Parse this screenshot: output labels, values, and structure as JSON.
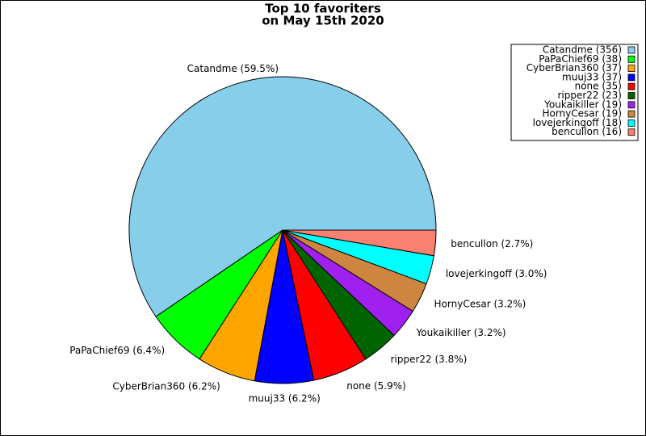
{
  "chart_data": {
    "type": "pie",
    "title_lines": [
      "Top 10 favoriters",
      "on May 15th 2020"
    ],
    "categories": [
      "Catandme",
      "PaPaChief69",
      "CyberBrian360",
      "muuj33",
      "none",
      "ripper22",
      "Youkaikiller",
      "HornyCesar",
      "lovejerkingoff",
      "bencullon"
    ],
    "values": [
      356,
      38,
      37,
      37,
      35,
      23,
      19,
      19,
      18,
      16
    ],
    "value_labels": [
      "Catandme (356)",
      "PaPaChief69 (38)",
      "CyberBrian360 (37)",
      "muuj33 (37)",
      "none (35)",
      "ripper22 (23)",
      "Youkaikiller (19)",
      "HornyCesar (19)",
      "lovejerkingoff (18)",
      "bencullon (16)"
    ],
    "slice_labels": [
      "Catandme (59.5%)",
      "PaPaChief69 (6.4%)",
      "CyberBrian360 (6.2%)",
      "muuj33 (6.2%)",
      "none (5.9%)",
      "ripper22 (3.8%)",
      "Youkaikiller (3.2%)",
      "HornyCesar (3.2%)",
      "lovejerkingoff (3.0%)",
      "bencullon (2.7%)"
    ],
    "colors": [
      "#87ceeb",
      "#00ff00",
      "#ffa500",
      "#0000ff",
      "#ff0000",
      "#006400",
      "#a020f0",
      "#cd853f",
      "#00ffff",
      "#fa8072"
    ],
    "legend": "upper right"
  }
}
